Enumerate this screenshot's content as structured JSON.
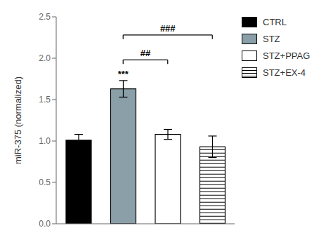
{
  "chart_data": {
    "type": "bar",
    "categories": [
      "CTRL",
      "STZ",
      "STZ+PPAG",
      "STZ+EX-4"
    ],
    "values": [
      1.01,
      1.63,
      1.08,
      0.93
    ],
    "errors": [
      0.07,
      0.1,
      0.06,
      0.13
    ],
    "colors": [
      "#000000",
      "#8a9fa8",
      "#ffffff",
      "#ffffff"
    ],
    "ylabel": "miR-375 (normalized)",
    "ylim": [
      0,
      2.5
    ],
    "yticks": [
      {
        "value": 0,
        "label": "0.0"
      },
      0.5,
      {
        "value": 1,
        "label": "1.0"
      },
      1.5,
      {
        "value": 2,
        "label": "2.0"
      },
      2.5
    ],
    "legend": "right",
    "grid": false,
    "tick_labels": "y",
    "annotations": [
      {
        "text": "***",
        "category": "STZ"
      },
      {
        "text": "##",
        "from": "STZ",
        "to": "STZ+PPAG"
      },
      {
        "text": "###",
        "from": "STZ",
        "to": "STZ+EX-4"
      }
    ]
  }
}
